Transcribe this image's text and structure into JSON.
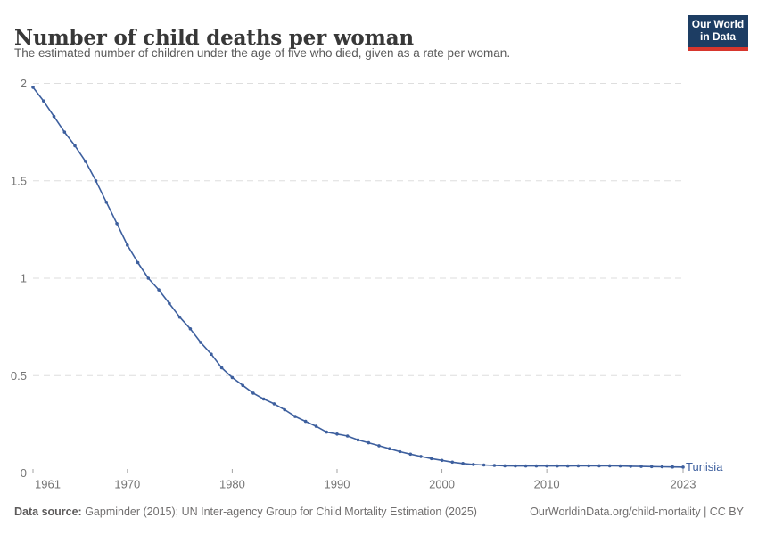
{
  "header": {
    "title": "Number of child deaths per woman",
    "subtitle": "The estimated number of children under the age of five who died, given as a rate per woman."
  },
  "logo": {
    "line1": "Our World",
    "line2": "in Data"
  },
  "entity_label": "Tunisia",
  "footer": {
    "datasource_label": "Data source:",
    "datasource_text": " Gapminder (2015); UN Inter-agency Group for Child Mortality Estimation (2025)",
    "right_text": "OurWorldinData.org/child-mortality | CC BY"
  },
  "colors": {
    "series_line": "#3d5f9e",
    "entity_label": "#3d5f9e",
    "gridline": "#dedede",
    "axis": "#a3a3a3",
    "tick_label": "#757575",
    "logo_bg": "#1d3d63",
    "logo_bar": "#d7362d",
    "title": "#383838",
    "subtitle": "#5a5a5a"
  },
  "chart_data": {
    "type": "line",
    "title": "Number of child deaths per woman",
    "subtitle": "The estimated number of children under the age of five who died, given as a rate per woman.",
    "xlabel": "",
    "ylabel": "",
    "xlim": [
      1961,
      2023
    ],
    "ylim": [
      0,
      2
    ],
    "grid": "horizontal-dashed",
    "legend_position": "end-of-line-label",
    "x_ticks": [
      1961,
      1970,
      1980,
      1990,
      2000,
      2010,
      2023
    ],
    "x_tick_labels": [
      "1961",
      "1970",
      "1980",
      "1990",
      "2000",
      "2010",
      "2023"
    ],
    "y_ticks": [
      0,
      0.5,
      1,
      1.5,
      2
    ],
    "y_tick_labels": [
      "0",
      "0.5",
      "1",
      "1.5",
      "2"
    ],
    "series": [
      {
        "name": "Tunisia",
        "color": "#3d5f9e",
        "x": [
          1961,
          1962,
          1963,
          1964,
          1965,
          1966,
          1967,
          1968,
          1969,
          1970,
          1971,
          1972,
          1973,
          1974,
          1975,
          1976,
          1977,
          1978,
          1979,
          1980,
          1981,
          1982,
          1983,
          1984,
          1985,
          1986,
          1987,
          1988,
          1989,
          1990,
          1991,
          1992,
          1993,
          1994,
          1995,
          1996,
          1997,
          1998,
          1999,
          2000,
          2001,
          2002,
          2003,
          2004,
          2005,
          2006,
          2007,
          2008,
          2009,
          2010,
          2011,
          2012,
          2013,
          2014,
          2015,
          2016,
          2017,
          2018,
          2019,
          2020,
          2021,
          2022,
          2023
        ],
        "values": [
          1.98,
          1.91,
          1.83,
          1.75,
          1.68,
          1.6,
          1.5,
          1.39,
          1.28,
          1.17,
          1.08,
          1.0,
          0.94,
          0.87,
          0.8,
          0.74,
          0.67,
          0.61,
          0.54,
          0.49,
          0.45,
          0.41,
          0.38,
          0.355,
          0.325,
          0.29,
          0.265,
          0.24,
          0.21,
          0.2,
          0.19,
          0.17,
          0.155,
          0.14,
          0.125,
          0.11,
          0.097,
          0.085,
          0.074,
          0.065,
          0.056,
          0.049,
          0.044,
          0.041,
          0.039,
          0.037,
          0.036,
          0.036,
          0.036,
          0.036,
          0.036,
          0.036,
          0.037,
          0.037,
          0.037,
          0.037,
          0.036,
          0.035,
          0.034,
          0.033,
          0.032,
          0.031,
          0.03
        ]
      }
    ]
  }
}
